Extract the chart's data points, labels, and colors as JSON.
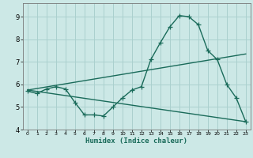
{
  "title": "",
  "xlabel": "Humidex (Indice chaleur)",
  "background_color": "#cce8e6",
  "grid_color": "#aad0ce",
  "line_color": "#1a6b5a",
  "xlim": [
    -0.5,
    23.5
  ],
  "ylim": [
    4,
    9.6
  ],
  "xticks": [
    0,
    1,
    2,
    3,
    4,
    5,
    6,
    7,
    8,
    9,
    10,
    11,
    12,
    13,
    14,
    15,
    16,
    17,
    18,
    19,
    20,
    21,
    22,
    23
  ],
  "yticks": [
    4,
    5,
    6,
    7,
    8,
    9
  ],
  "line1_x": [
    0,
    1,
    2,
    3,
    4,
    5,
    6,
    7,
    8,
    9,
    10,
    11,
    12,
    13,
    14,
    15,
    16,
    17,
    18,
    19,
    20,
    21,
    22,
    23
  ],
  "line1_y": [
    5.7,
    5.6,
    5.8,
    5.9,
    5.8,
    5.2,
    4.65,
    4.65,
    4.6,
    5.0,
    5.4,
    5.75,
    5.9,
    7.1,
    7.85,
    8.55,
    9.05,
    9.0,
    8.65,
    7.5,
    7.1,
    6.0,
    5.4,
    4.35
  ],
  "line2_x": [
    0,
    23
  ],
  "line2_y": [
    5.75,
    7.35
  ],
  "line3_x": [
    0,
    23
  ],
  "line3_y": [
    5.75,
    4.35
  ],
  "marker_size": 4,
  "linewidth": 1.0
}
